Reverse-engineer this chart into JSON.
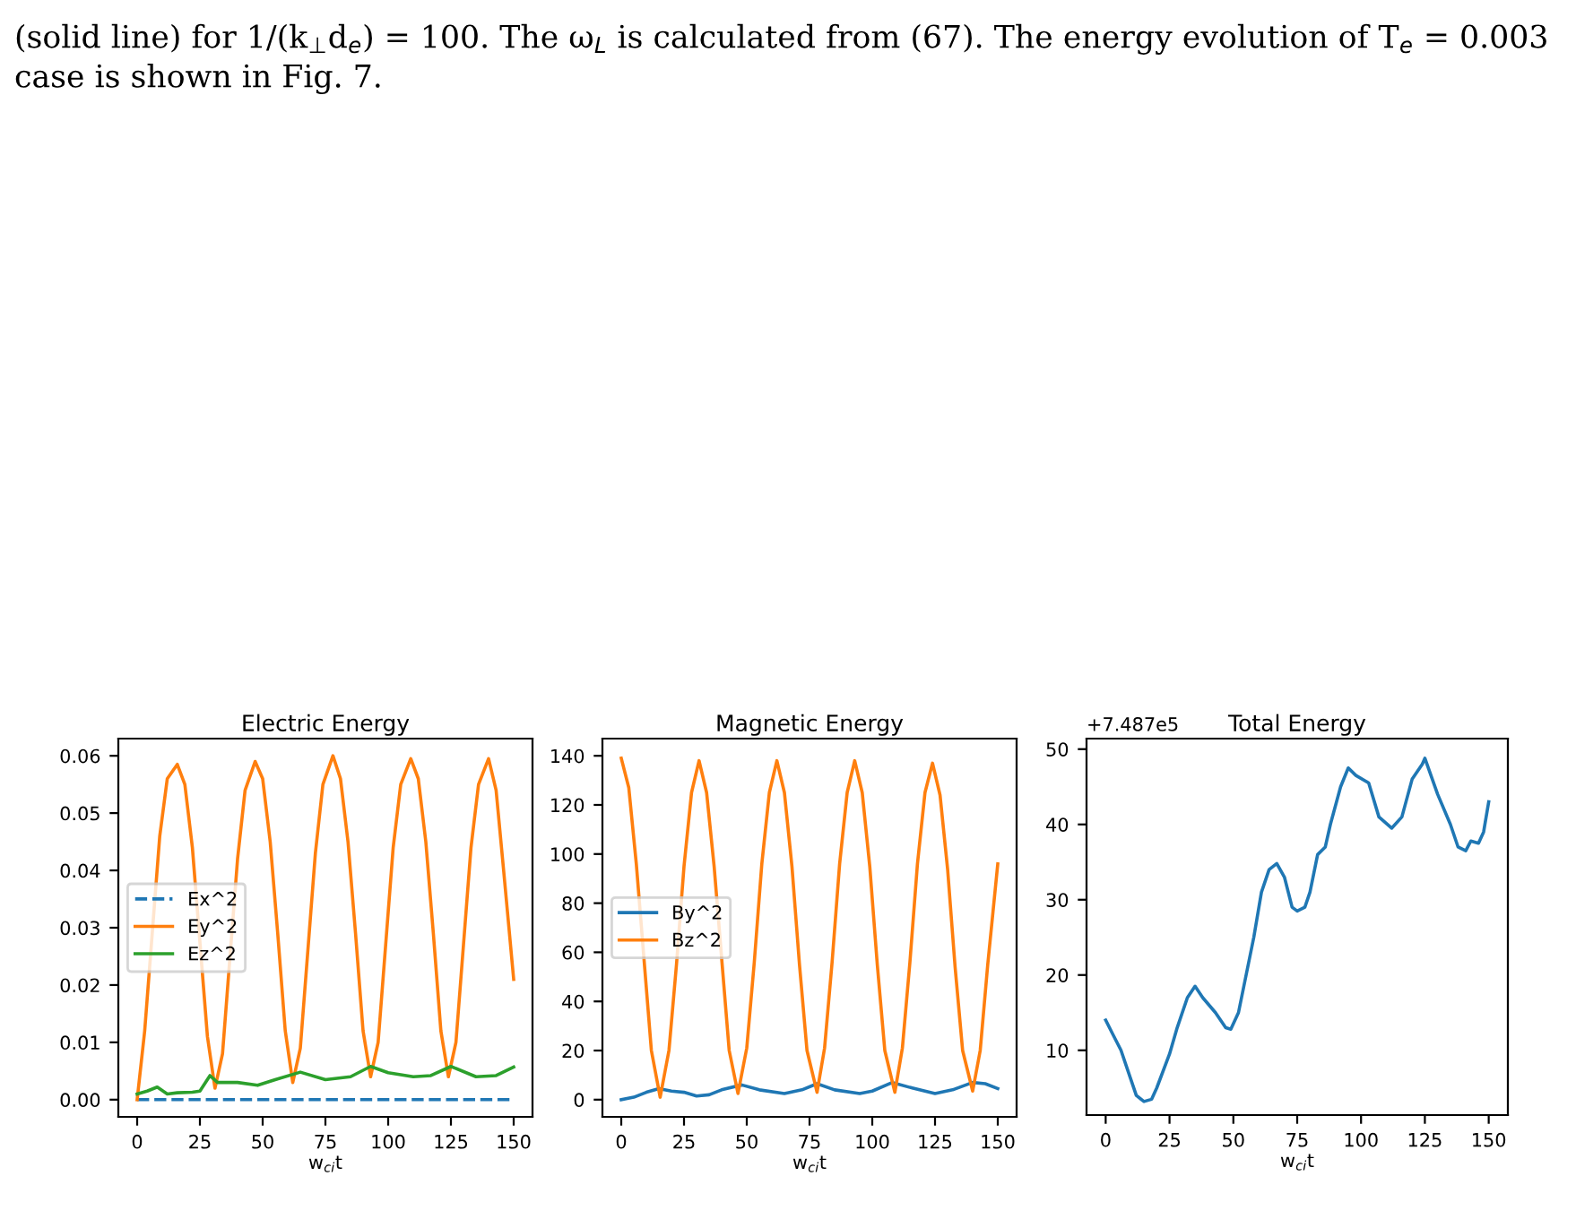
{
  "chart_data": [
    {
      "type": "line",
      "title": "Electric Energy",
      "xlabel": "w$_{ci}$t",
      "xlim": [
        -7.5,
        157.5
      ],
      "xticks": [
        0,
        25,
        50,
        75,
        100,
        125,
        150
      ],
      "ylim": [
        -0.003,
        0.063
      ],
      "yticks": [
        {
          "value": 0,
          "label": "0.00"
        },
        {
          "value": 0.01,
          "label": "0.01"
        },
        {
          "value": 0.02,
          "label": "0.02"
        },
        {
          "value": 0.03,
          "label": "0.03"
        },
        {
          "value": 0.04,
          "label": "0.04"
        },
        {
          "value": 0.05,
          "label": "0.05"
        },
        {
          "value": 0.06,
          "label": "0.06"
        }
      ],
      "grid": false,
      "legend": "center left",
      "annotations": [
        "(solid line) for 1/(k$_{⊥}$d$_{e}$) = 100. The ω$_{L}$ is calculated from (67). The energy evolution of T$_{e}$ = 0.003",
        "case is shown in Fig. 7."
      ],
      "series": [
        {
          "name": "Ex^2",
          "color": "#1f77b4",
          "line_style": "dashed",
          "x": [
            0,
            150
          ],
          "values": [
            0,
            0
          ]
        },
        {
          "name": "Ey^2",
          "color": "#ff7f0e",
          "line_style": "solid",
          "x": [
            0,
            3,
            9,
            12,
            16,
            19,
            22,
            28,
            31,
            34,
            40,
            43,
            47,
            50,
            53,
            56,
            59,
            62,
            65,
            68,
            71,
            74,
            78,
            81,
            84,
            87,
            90,
            93,
            96,
            99,
            102,
            105,
            109,
            112,
            115,
            118,
            121,
            124,
            127,
            130,
            133,
            136,
            140,
            143,
            146,
            150
          ],
          "values": [
            0.0,
            0.012,
            0.046,
            0.056,
            0.0585,
            0.055,
            0.044,
            0.011,
            0.002,
            0.008,
            0.042,
            0.054,
            0.059,
            0.056,
            0.045,
            0.029,
            0.012,
            0.003,
            0.009,
            0.026,
            0.043,
            0.055,
            0.06,
            0.056,
            0.045,
            0.029,
            0.012,
            0.004,
            0.01,
            0.027,
            0.044,
            0.055,
            0.0595,
            0.056,
            0.045,
            0.029,
            0.012,
            0.004,
            0.01,
            0.027,
            0.044,
            0.055,
            0.0595,
            0.054,
            0.04,
            0.021
          ]
        },
        {
          "name": "Ez^2",
          "color": "#2ca02c",
          "line_style": "solid",
          "x": [
            0,
            4,
            8,
            12,
            16,
            22,
            25,
            29,
            32,
            40,
            48,
            55,
            65,
            75,
            85,
            93,
            100,
            110,
            117,
            125,
            135,
            143,
            150
          ],
          "values": [
            0.001,
            0.0015,
            0.0022,
            0.001,
            0.0012,
            0.0013,
            0.0015,
            0.0042,
            0.003,
            0.003,
            0.0025,
            0.0035,
            0.0048,
            0.0035,
            0.004,
            0.0058,
            0.0047,
            0.004,
            0.0042,
            0.0058,
            0.004,
            0.0042,
            0.0057
          ]
        }
      ]
    },
    {
      "type": "line",
      "title": "Magnetic Energy",
      "xlabel": "w$_{ci}$t",
      "xlim": [
        -7.5,
        157.5
      ],
      "xticks": [
        0,
        25,
        50,
        75,
        100,
        125,
        150
      ],
      "ylim": [
        -7,
        147
      ],
      "yticks": [
        0,
        20,
        40,
        60,
        80,
        100,
        120,
        140
      ],
      "grid": false,
      "legend": "center left",
      "series": [
        {
          "name": "By^2",
          "color": "#1f77b4",
          "line_style": "solid",
          "x": [
            0,
            5,
            10,
            15,
            20,
            25,
            30,
            35,
            40,
            48,
            55,
            65,
            72,
            78,
            85,
            95,
            100,
            108,
            115,
            125,
            132,
            140,
            145,
            150
          ],
          "values": [
            0,
            1,
            3,
            4.5,
            3.5,
            3,
            1.5,
            2,
            4,
            6,
            4,
            2.5,
            4,
            6.5,
            4,
            2.5,
            3.5,
            7,
            5,
            2.5,
            4,
            7,
            6.5,
            4.5
          ]
        },
        {
          "name": "Bz^2",
          "color": "#ff7f0e",
          "line_style": "solid",
          "x": [
            0,
            3,
            6,
            12,
            15.5,
            19,
            22,
            25,
            28,
            31,
            34,
            37,
            43,
            46.5,
            50,
            53,
            56,
            59,
            62,
            65,
            68,
            71,
            74,
            78,
            81,
            84,
            87,
            90,
            93,
            96,
            99,
            102,
            105,
            109,
            112,
            115,
            118,
            121,
            124,
            127,
            130,
            133,
            136,
            140,
            143,
            146,
            150
          ],
          "values": [
            139,
            127,
            96,
            20,
            1,
            20,
            55,
            95,
            125,
            138,
            125,
            95,
            20,
            2.5,
            21,
            56,
            96,
            125,
            138,
            125,
            95,
            55,
            20,
            3,
            21,
            56,
            96,
            125,
            138,
            125,
            95,
            55,
            20,
            3,
            21,
            56,
            96,
            125,
            137,
            124,
            94,
            54,
            20,
            3.5,
            20,
            55,
            96
          ]
        }
      ]
    },
    {
      "type": "line",
      "title": "Total Energy",
      "xlabel": "w$_{ci}$t",
      "xlim": [
        -7.5,
        157.5
      ],
      "xticks": [
        0,
        25,
        50,
        75,
        100,
        125,
        150
      ],
      "ylim": [
        1.4,
        51.4
      ],
      "yticks": [
        10,
        20,
        30,
        40,
        50
      ],
      "grid": false,
      "legend": false,
      "annotations": [
        "+7.487e5"
      ],
      "series": [
        {
          "color": "#1f77b4",
          "line_style": "solid",
          "x": [
            0,
            3,
            6,
            8,
            10,
            12,
            15,
            18,
            20,
            25,
            28,
            32,
            35,
            38,
            43,
            47,
            49,
            52,
            55,
            58,
            61,
            64,
            67,
            70,
            73,
            75,
            78,
            80,
            83,
            86,
            88,
            92,
            95,
            98,
            103,
            107,
            112,
            116,
            120,
            124,
            125,
            130,
            135,
            138,
            141,
            143,
            146,
            148,
            150
          ],
          "values": [
            14,
            12,
            10,
            8,
            6,
            4,
            3.2,
            3.5,
            5,
            9.5,
            13,
            17,
            18.5,
            17,
            15,
            13,
            12.8,
            15,
            20,
            25,
            31,
            34,
            34.8,
            33,
            29,
            28.5,
            29,
            31,
            36,
            37,
            40,
            45,
            47.5,
            46.5,
            45.5,
            41,
            39.5,
            41,
            46,
            48,
            48.8,
            44,
            40,
            37,
            36.5,
            37.8,
            37.5,
            39,
            43
          ]
        }
      ]
    }
  ]
}
